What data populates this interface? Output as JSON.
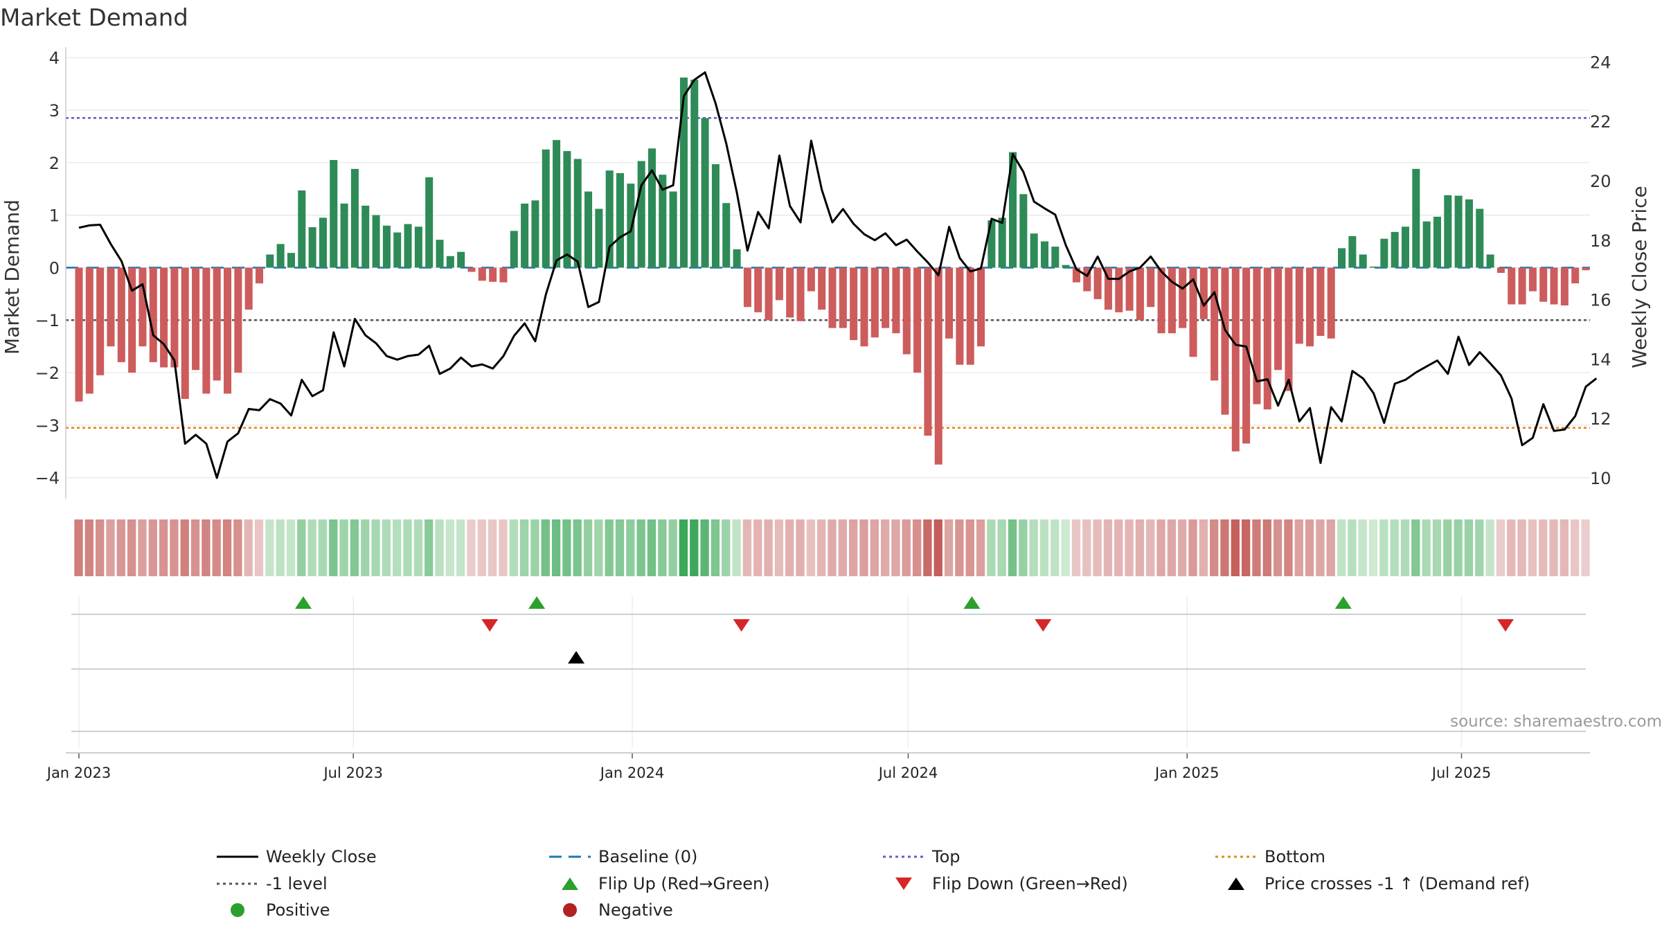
{
  "chart_data": {
    "type": "bar",
    "title": "Market Demand",
    "ylabel_left": "Market Demand",
    "ylabel_right": "Weekly Close Price",
    "ylim_left": [
      -4.4,
      4.2
    ],
    "ylim_right": [
      9.3,
      24.5
    ],
    "yticks_left": [
      4,
      3,
      2,
      1,
      0,
      -1,
      -2,
      -3,
      -4
    ],
    "yticks_left_labels": [
      "4",
      "3",
      "2",
      "1",
      "0",
      "−1",
      "−2",
      "−3",
      "−4"
    ],
    "yticks_right": [
      24,
      22,
      20,
      18,
      16,
      14,
      12,
      10
    ],
    "x_start": "2023-01-01",
    "x_end": "2025-09-21",
    "xticks": [
      {
        "date": "2023-01-01",
        "label": "Jan 2023"
      },
      {
        "date": "2023-07-01",
        "label": "Jul 2023"
      },
      {
        "date": "2024-01-01",
        "label": "Jan 2024"
      },
      {
        "date": "2024-07-01",
        "label": "Jul 2024"
      },
      {
        "date": "2025-01-01",
        "label": "Jan 2025"
      },
      {
        "date": "2025-07-01",
        "label": "Jul 2025"
      }
    ],
    "reference_lines": {
      "top": 2.85,
      "bottom": -3.05,
      "minus_one": -1.0,
      "baseline": 0
    },
    "demand_weekly": [
      -2.55,
      -2.4,
      -2.05,
      -1.5,
      -1.8,
      -2.0,
      -1.5,
      -1.8,
      -1.9,
      -1.9,
      -2.5,
      -1.95,
      -2.4,
      -2.15,
      -2.4,
      -2.0,
      -0.8,
      -0.3,
      0.25,
      0.45,
      0.28,
      1.47,
      0.77,
      0.95,
      2.05,
      1.22,
      1.88,
      1.18,
      1.0,
      0.8,
      0.67,
      0.83,
      0.78,
      1.72,
      0.53,
      0.22,
      0.3,
      -0.08,
      -0.25,
      -0.27,
      -0.28,
      0.7,
      1.22,
      1.28,
      2.25,
      2.43,
      2.22,
      2.07,
      1.45,
      1.12,
      1.85,
      1.8,
      1.6,
      2.03,
      2.27,
      1.77,
      1.45,
      3.62,
      3.58,
      2.85,
      1.97,
      1.23,
      0.35,
      -0.75,
      -0.85,
      -1.0,
      -0.62,
      -0.95,
      -1.02,
      -0.45,
      -0.8,
      -1.15,
      -1.15,
      -1.38,
      -1.5,
      -1.33,
      -1.15,
      -1.25,
      -1.65,
      -2.0,
      -3.2,
      -3.75,
      -1.35,
      -1.85,
      -1.85,
      -1.5,
      0.9,
      0.95,
      2.2,
      1.4,
      0.65,
      0.5,
      0.4,
      0.05,
      -0.28,
      -0.45,
      -0.6,
      -0.8,
      -0.85,
      -0.82,
      -1.0,
      -0.75,
      -1.25,
      -1.25,
      -1.15,
      -1.7,
      -0.98,
      -2.15,
      -2.8,
      -3.5,
      -3.35,
      -2.6,
      -2.7,
      -1.95,
      -2.35,
      -1.45,
      -1.5,
      -1.3,
      -1.35,
      0.37,
      0.6,
      0.25,
      0.02,
      0.55,
      0.68,
      0.78,
      1.88,
      0.88,
      0.97,
      1.38,
      1.37,
      1.3,
      1.12,
      0.25,
      -0.1,
      -0.7,
      -0.7,
      -0.45,
      -0.65,
      -0.7,
      -0.72,
      -0.3,
      -0.05
    ],
    "close_weekly": [
      18.42,
      18.5,
      18.52,
      17.87,
      17.3,
      16.3,
      16.52,
      14.8,
      14.5,
      13.95,
      11.15,
      11.45,
      11.15,
      10.0,
      11.22,
      11.5,
      12.32,
      12.28,
      12.65,
      12.5,
      12.1,
      13.3,
      12.75,
      12.95,
      14.9,
      13.75,
      15.35,
      14.8,
      14.53,
      14.1,
      13.98,
      14.1,
      14.15,
      14.45,
      13.5,
      13.68,
      14.05,
      13.75,
      13.82,
      13.68,
      14.1,
      14.78,
      15.2,
      14.6,
      16.18,
      17.32,
      17.52,
      17.28,
      15.75,
      15.92,
      17.78,
      18.1,
      18.3,
      19.85,
      20.35,
      19.7,
      19.85,
      22.85,
      23.4,
      23.65,
      22.6,
      21.25,
      19.6,
      17.65,
      18.95,
      18.4,
      20.85,
      19.15,
      18.6,
      21.35,
      19.7,
      18.6,
      19.05,
      18.55,
      18.2,
      18.0,
      18.23,
      17.83,
      18.02,
      17.62,
      17.25,
      16.82,
      18.45,
      17.4,
      16.95,
      17.05,
      18.72,
      18.58,
      20.9,
      20.3,
      19.3,
      19.07,
      18.86,
      17.83,
      17.02,
      16.8,
      17.45,
      16.7,
      16.7,
      16.95,
      17.08,
      17.45,
      16.95,
      16.6,
      16.37,
      16.68,
      15.8,
      16.25,
      14.98,
      14.48,
      14.42,
      13.25,
      13.32,
      12.43,
      13.3,
      11.9,
      12.35,
      10.5,
      12.38,
      11.9,
      13.6,
      13.35,
      12.85,
      11.85,
      13.17,
      13.3,
      13.55,
      13.75,
      13.95,
      13.5,
      14.75,
      13.8,
      14.23,
      13.85,
      13.45,
      12.67,
      11.1,
      11.35,
      12.48,
      11.58,
      11.63,
      12.08,
      13.07,
      13.35
    ],
    "flip_up_dates": [
      "2023-05-29",
      "2023-10-30",
      "2024-08-12",
      "2025-04-14"
    ],
    "flip_down_dates": [
      "2023-09-29",
      "2024-03-13",
      "2024-09-28",
      "2025-07-30"
    ],
    "price_cross_dates": [
      "2023-11-25"
    ],
    "source_text": "source: sharemaestro.com",
    "legend": [
      {
        "label": "Weekly Close",
        "kind": "line",
        "color": "#000000"
      },
      {
        "label": "Baseline (0)",
        "kind": "dash",
        "color": "#1f77b4"
      },
      {
        "label": "Top",
        "kind": "dot",
        "color": "#6a5acd"
      },
      {
        "label": "Bottom",
        "kind": "dot",
        "color": "#e08a1e"
      },
      {
        "label": "-1 level",
        "kind": "dot",
        "color": "#555555"
      },
      {
        "label": "Flip Up (Red→Green)",
        "kind": "tri-up",
        "color": "#2ca02c"
      },
      {
        "label": "Flip Down (Green→Red)",
        "kind": "tri-down",
        "color": "#d62728"
      },
      {
        "label": "Price crosses -1 ↑ (Demand ref)",
        "kind": "tri-up",
        "color": "#000000"
      },
      {
        "label": "Positive",
        "kind": "circle",
        "color": "#2ca02c"
      },
      {
        "label": "Negative",
        "kind": "circle",
        "color": "#b22222"
      }
    ]
  },
  "colors": {
    "positive_bar": "#2e8b57",
    "negative_bar": "#cd5c5c",
    "baseline": "#1f77b4",
    "top": "#6a5acd",
    "bottom": "#e08a1e",
    "minus_one": "#555555",
    "close_line": "#000000",
    "flip_up": "#2ca02c",
    "flip_down": "#d62728",
    "grid": "#e6e6e6"
  }
}
